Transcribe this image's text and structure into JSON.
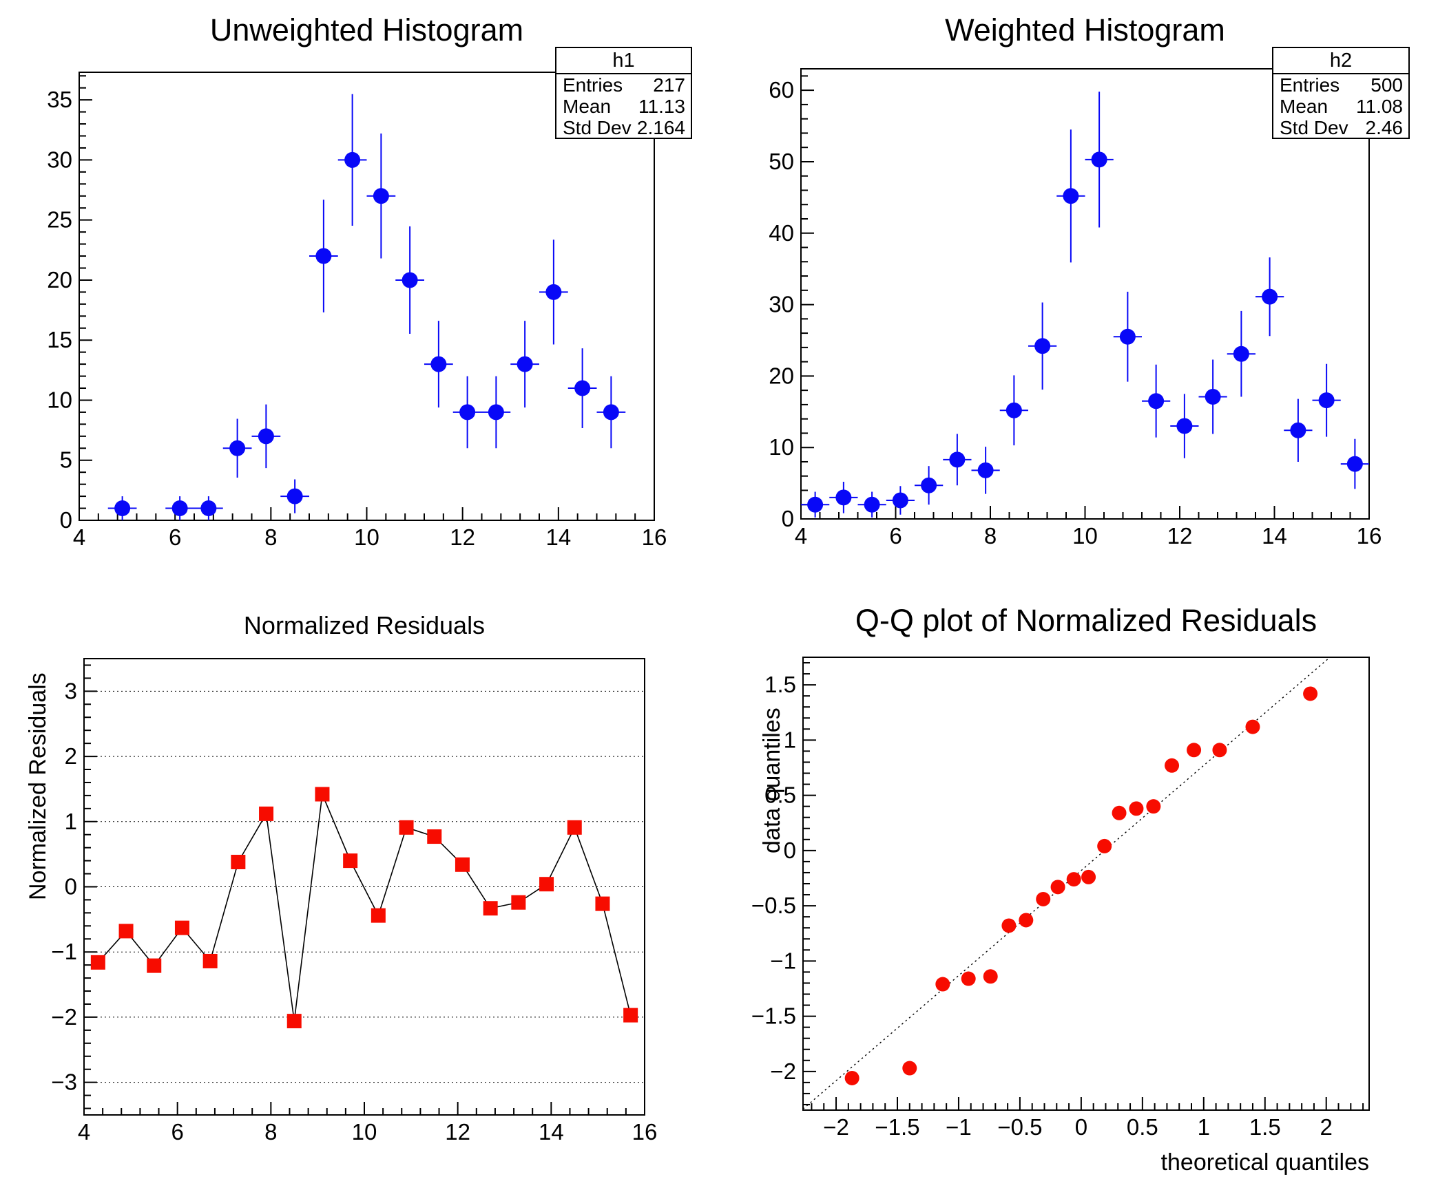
{
  "app": {
    "kind": "ROOT analysis canvas",
    "background": "#ffffff"
  },
  "colors": {
    "histogram_marker_blue": "#0808f7",
    "residual_marker_red": "#f70c00",
    "axis_black": "#000000",
    "frame_background": "#ffffff"
  },
  "chart_data": [
    {
      "id": "unweighted-histogram",
      "type": "scatter",
      "title": "Unweighted Histogram",
      "xlabel": "",
      "ylabel": "",
      "xlim": [
        4,
        16
      ],
      "ylim": [
        0,
        37.3
      ],
      "xticks": [
        4,
        6,
        8,
        10,
        12,
        14,
        16
      ],
      "xtick_labels": [
        "4",
        "6",
        "8",
        "10",
        "12",
        "14",
        "16"
      ],
      "yticks": [
        0,
        5,
        10,
        15,
        20,
        25,
        30,
        35
      ],
      "ytick_labels": [
        "0",
        "5",
        "10",
        "15",
        "20",
        "25",
        "30",
        "35"
      ],
      "x_minor_step": 0.4,
      "y_minor_step": 1,
      "bin_half_width": 0.3,
      "marker": {
        "shape": "circle",
        "color": "#0808f7",
        "size": 11.5
      },
      "x": [
        4.9,
        6.1,
        6.7,
        7.3,
        7.9,
        8.5,
        9.1,
        9.7,
        10.3,
        10.9,
        11.5,
        12.1,
        12.7,
        13.3,
        13.9,
        14.5,
        15.1
      ],
      "y": [
        1,
        1,
        1,
        6,
        7,
        2,
        22,
        30,
        27,
        20,
        13,
        9,
        9,
        13,
        19,
        11,
        9
      ],
      "yerr": [
        1,
        1,
        1,
        2.45,
        2.65,
        1.41,
        4.69,
        5.48,
        5.2,
        4.47,
        3.61,
        3,
        3,
        3.61,
        4.36,
        3.32,
        3
      ],
      "stats": {
        "name": "h1",
        "rows": [
          {
            "label": "Entries",
            "value": "217"
          },
          {
            "label": "Mean",
            "value": "11.13"
          },
          {
            "label": "Std Dev",
            "value": "2.164"
          }
        ]
      }
    },
    {
      "id": "weighted-histogram",
      "type": "scatter",
      "title": "Weighted Histogram",
      "xlabel": "",
      "ylabel": "",
      "xlim": [
        4,
        16
      ],
      "ylim": [
        0,
        63
      ],
      "xticks": [
        4,
        6,
        8,
        10,
        12,
        14,
        16
      ],
      "xtick_labels": [
        "4",
        "6",
        "8",
        "10",
        "12",
        "14",
        "16"
      ],
      "yticks": [
        0,
        10,
        20,
        30,
        40,
        50,
        60
      ],
      "ytick_labels": [
        "0",
        "10",
        "20",
        "30",
        "40",
        "50",
        "60"
      ],
      "x_minor_step": 0.4,
      "y_minor_step": 2,
      "bin_half_width": 0.3,
      "marker": {
        "shape": "circle",
        "color": "#0808f7",
        "size": 11.5
      },
      "x": [
        4.3,
        4.9,
        5.5,
        6.1,
        6.7,
        7.3,
        7.9,
        8.5,
        9.1,
        9.7,
        10.3,
        10.9,
        11.5,
        12.1,
        12.7,
        13.3,
        13.9,
        14.5,
        15.1,
        15.7
      ],
      "y": [
        2.0,
        3.0,
        2.0,
        2.6,
        4.7,
        8.3,
        6.8,
        15.2,
        24.2,
        45.2,
        50.3,
        25.5,
        16.5,
        13.0,
        17.1,
        23.1,
        31.1,
        12.4,
        16.6,
        7.7
      ],
      "yerr": [
        1.8,
        2.2,
        1.8,
        2.0,
        2.7,
        3.6,
        3.3,
        4.9,
        6.1,
        9.3,
        9.5,
        6.3,
        5.1,
        4.5,
        5.2,
        6.0,
        5.5,
        4.4,
        5.1,
        3.5
      ],
      "stats": {
        "name": "h2",
        "rows": [
          {
            "label": "Entries",
            "value": "500"
          },
          {
            "label": "Mean",
            "value": "11.08"
          },
          {
            "label": "Std Dev",
            "value": "2.46"
          }
        ]
      }
    },
    {
      "id": "normalized-residuals",
      "type": "line",
      "title": "Normalized Residuals",
      "xlabel": "",
      "ylabel": "Normalized Residuals",
      "xlim": [
        4,
        16
      ],
      "ylim": [
        -3.5,
        3.5
      ],
      "xticks": [
        4,
        6,
        8,
        10,
        12,
        14,
        16
      ],
      "xtick_labels": [
        "4",
        "6",
        "8",
        "10",
        "12",
        "14",
        "16"
      ],
      "yticks": [
        -3,
        -2,
        -1,
        0,
        1,
        2,
        3
      ],
      "ytick_labels": [
        "−3",
        "−2",
        "−1",
        "0",
        "1",
        "2",
        "3"
      ],
      "x_minor_step": 0.4,
      "y_minor_step": 0.2,
      "gridlines_y": [
        -3,
        -2,
        -1,
        0,
        1,
        2,
        3
      ],
      "connect": true,
      "marker": {
        "shape": "square",
        "color": "#f70c00",
        "size": 10.5
      },
      "x": [
        4.3,
        4.9,
        5.5,
        6.1,
        6.7,
        7.3,
        7.9,
        8.5,
        9.1,
        9.7,
        10.3,
        10.9,
        11.5,
        12.1,
        12.7,
        13.3,
        13.9,
        14.5,
        15.1,
        15.7
      ],
      "y": [
        -1.16,
        -0.68,
        -1.21,
        -0.63,
        -1.14,
        0.38,
        1.12,
        -2.06,
        1.42,
        0.4,
        -0.44,
        0.91,
        0.77,
        0.34,
        -0.33,
        -0.24,
        0.04,
        0.91,
        -0.26,
        -1.97
      ]
    },
    {
      "id": "qq-plot",
      "type": "scatter",
      "title": "Q-Q plot of Normalized Residuals",
      "xlabel": "theoretical quantiles",
      "ylabel": "data quantiles",
      "xlim": [
        -2.27,
        2.35
      ],
      "ylim": [
        -2.35,
        1.75
      ],
      "xticks": [
        -2,
        -1.5,
        -1,
        -0.5,
        0,
        0.5,
        1,
        1.5,
        2
      ],
      "xtick_labels": [
        "−2",
        "−1.5",
        "−1",
        "−0.5",
        "0",
        "0.5",
        "1",
        "1.5",
        "2"
      ],
      "yticks": [
        -2,
        -1.5,
        -1,
        -0.5,
        0,
        0.5,
        1,
        1.5
      ],
      "ytick_labels": [
        "−2",
        "−1.5",
        "−1",
        "−0.5",
        "0",
        "0.5",
        "1",
        "1.5"
      ],
      "x_minor_step": 0.1,
      "y_minor_step": 0.1,
      "refline": {
        "x1": -2.27,
        "y1": -2.34,
        "x2": 2.03,
        "y2": 1.75
      },
      "marker": {
        "shape": "circle",
        "color": "#f70c00",
        "size": 10.5
      },
      "x": [
        -1.87,
        -1.4,
        -1.13,
        -0.92,
        -0.74,
        -0.59,
        -0.45,
        -0.31,
        -0.19,
        -0.06,
        0.06,
        0.19,
        0.31,
        0.45,
        0.59,
        0.74,
        0.92,
        1.13,
        1.4,
        1.87
      ],
      "y": [
        -2.06,
        -1.97,
        -1.21,
        -1.16,
        -1.14,
        -0.68,
        -0.63,
        -0.44,
        -0.33,
        -0.26,
        -0.24,
        0.04,
        0.34,
        0.38,
        0.4,
        0.77,
        0.91,
        0.91,
        1.12,
        1.42
      ]
    }
  ]
}
